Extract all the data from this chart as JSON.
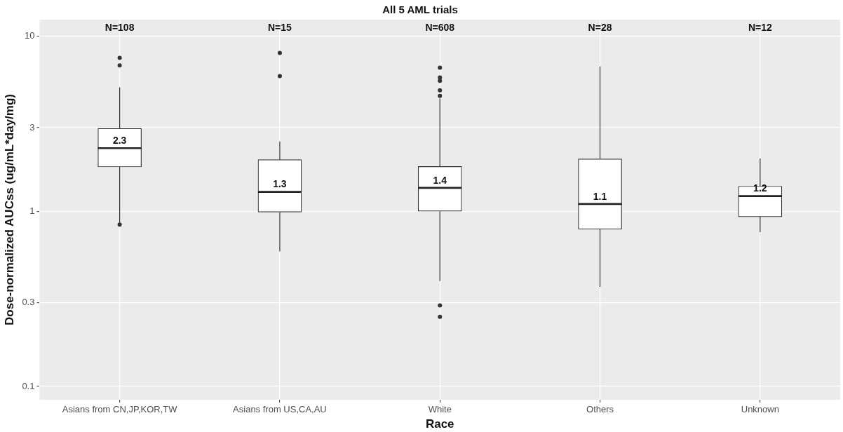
{
  "chart_data": {
    "type": "box",
    "title": "All 5 AML trials",
    "xlabel": "Race",
    "ylabel": "Dose-normalized AUCss (ug/mL*day/mg)",
    "categories": [
      "Asians from CN,JP,KOR,TW",
      "Asians from US,CA,AU",
      "White",
      "Others",
      "Unknown"
    ],
    "boxes": [
      {
        "low": 0.86,
        "q1": 1.79,
        "median": 2.29,
        "q3": 2.97,
        "high": 5.1,
        "outliers": [
          0.84,
          6.8,
          7.5
        ]
      },
      {
        "low": 0.59,
        "q1": 0.99,
        "median": 1.29,
        "q3": 1.97,
        "high": 2.5,
        "outliers": [
          5.9,
          8.0
        ]
      },
      {
        "low": 0.4,
        "q1": 1.0,
        "median": 1.36,
        "q3": 1.8,
        "high": 4.4,
        "outliers": [
          0.25,
          0.29,
          4.55,
          4.9,
          5.55,
          5.8,
          6.6
        ]
      },
      {
        "low": 0.37,
        "q1": 0.79,
        "median": 1.1,
        "q3": 1.99,
        "high": 6.7
      },
      {
        "low": 0.76,
        "q1": 0.93,
        "median": 1.22,
        "q3": 1.39,
        "high": 2.0
      }
    ],
    "value_labels": [
      "2.3",
      "1.3",
      "1.4",
      "1.1",
      "1.2"
    ],
    "annotations": [
      "N=108",
      "N=15",
      "N=608",
      "N=28",
      "N=12"
    ],
    "log": "y",
    "ylim": [
      0.084,
      12.4
    ],
    "yticks": [
      0.1,
      0.3,
      1,
      3,
      10
    ],
    "grid": true
  }
}
